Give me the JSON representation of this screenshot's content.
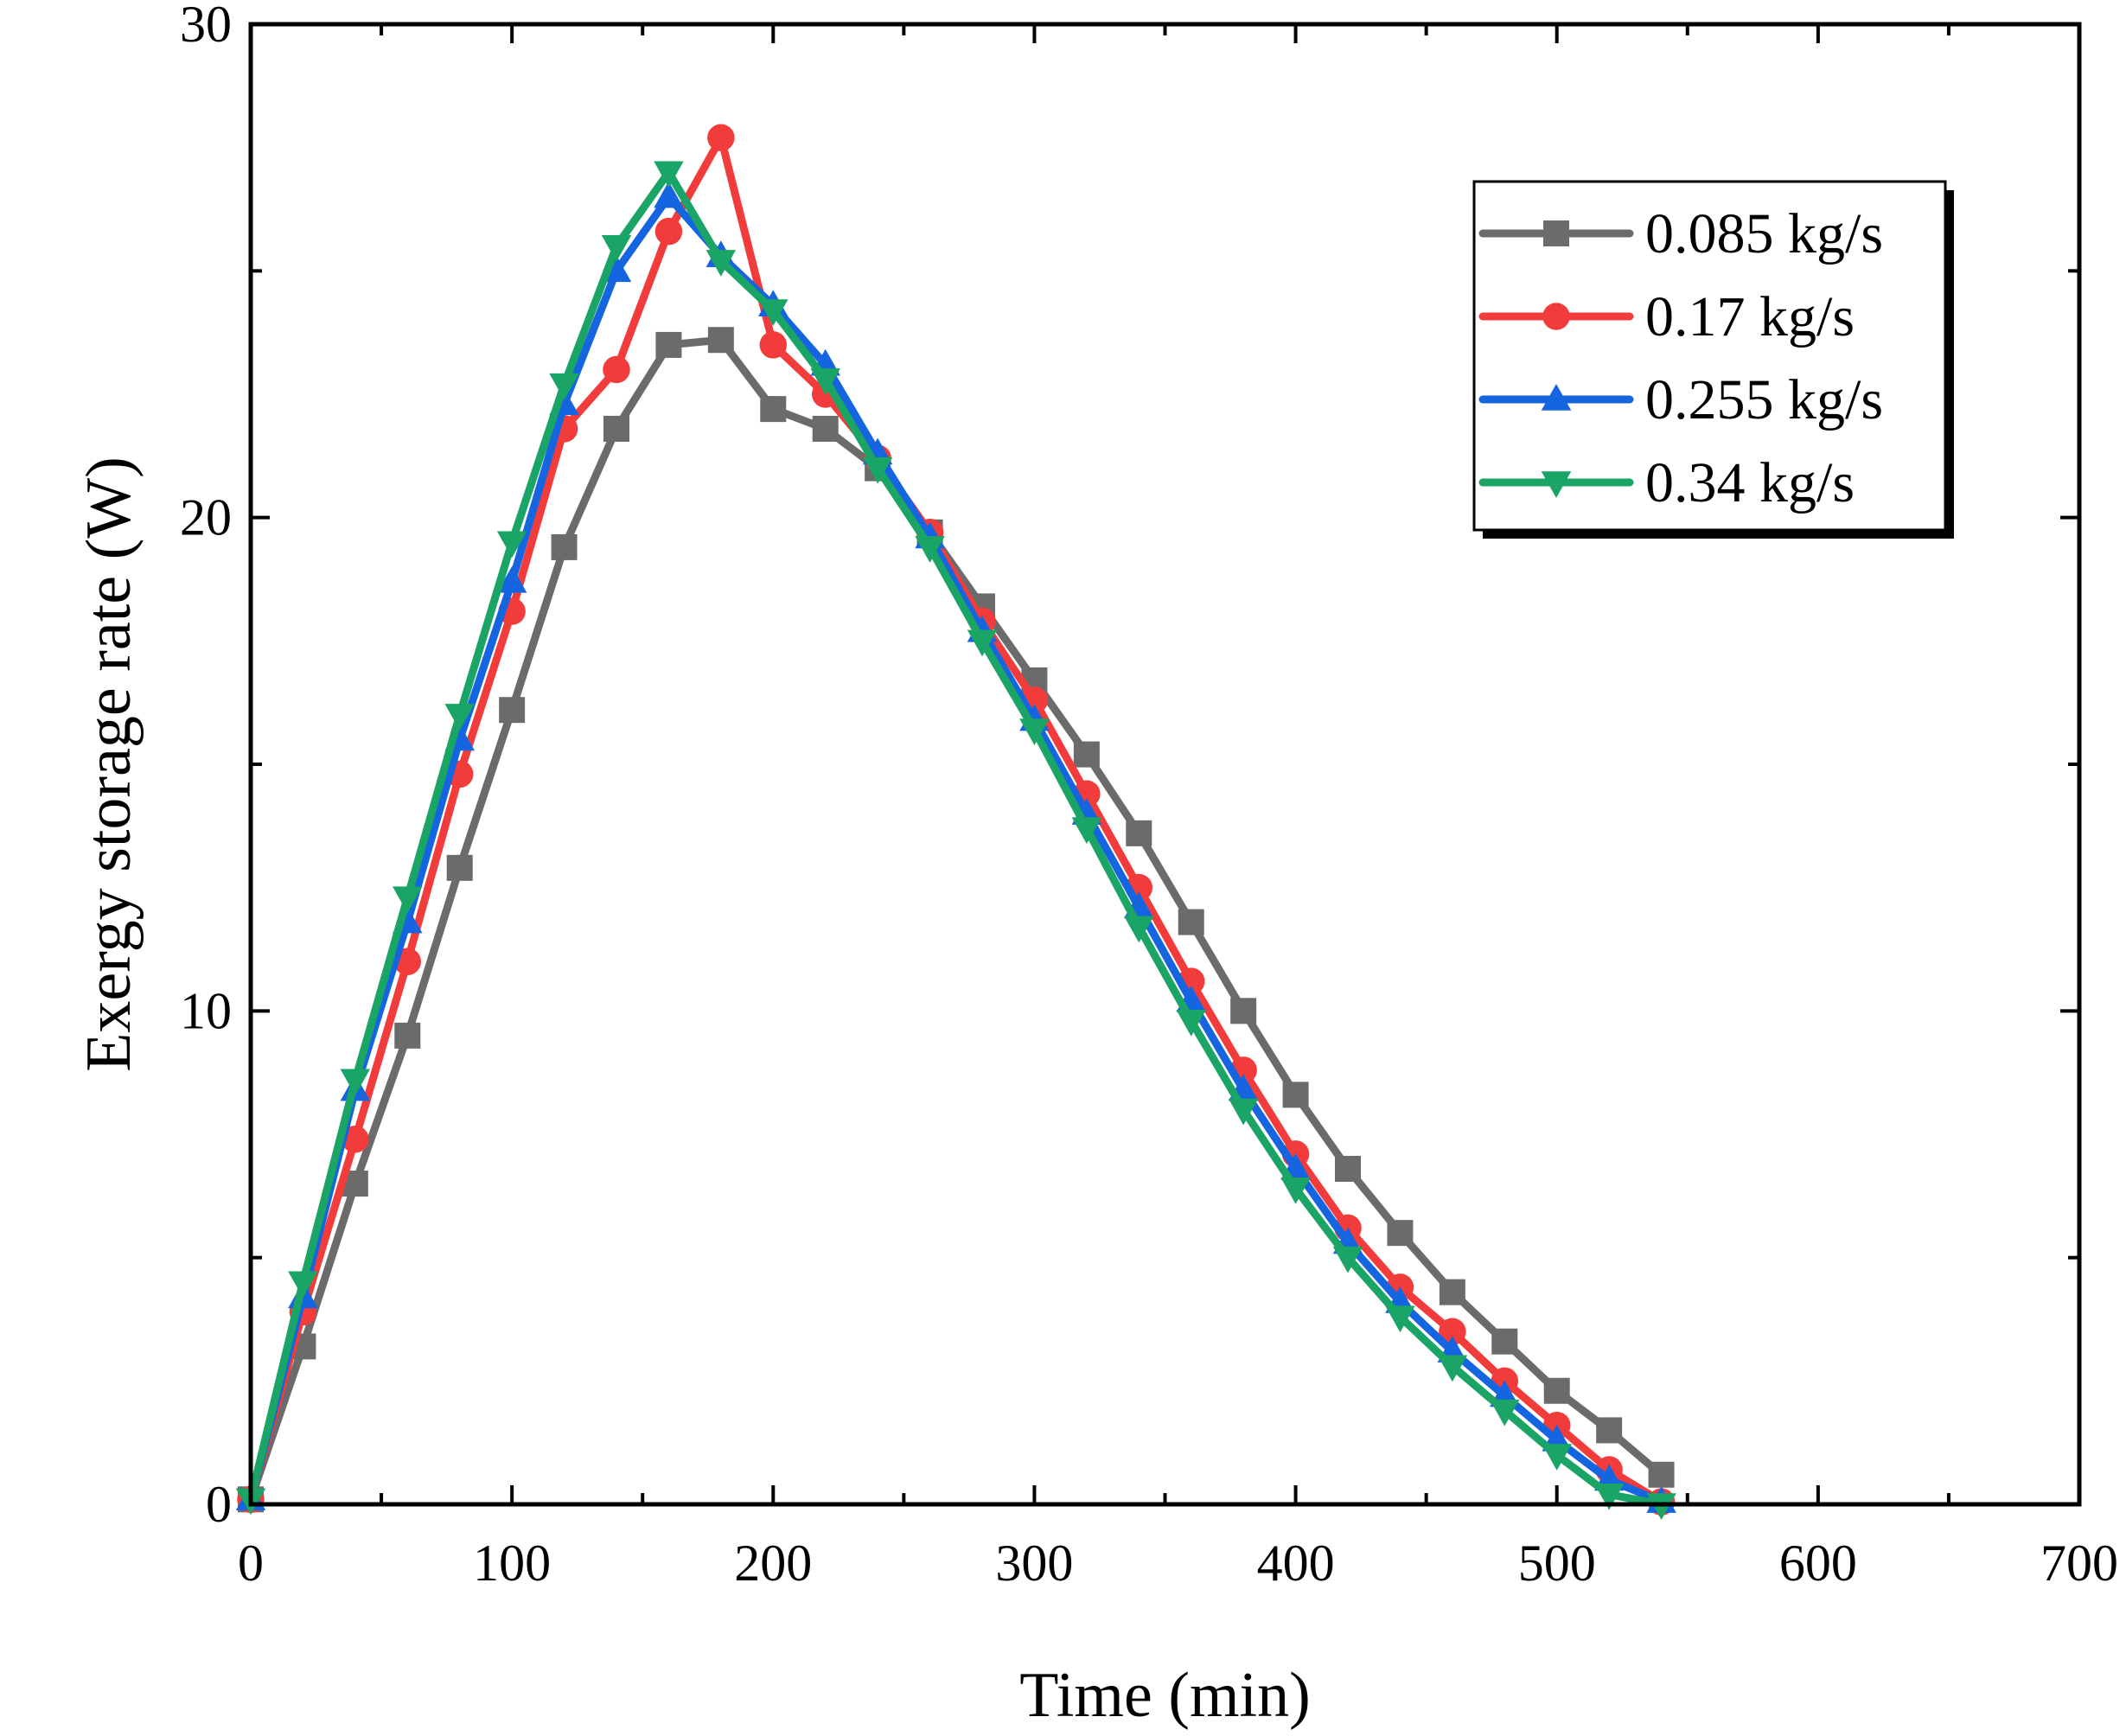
{
  "chart_data": {
    "type": "line",
    "title": "",
    "xlabel": "Time (min)",
    "ylabel": "Exergy storage rate (W)",
    "xlim": [
      0,
      700
    ],
    "ylim": [
      0,
      30
    ],
    "xticks": [
      0,
      100,
      200,
      300,
      400,
      500,
      600,
      700
    ],
    "yticks": [
      0,
      10,
      20,
      30
    ],
    "grid": false,
    "legend_position": "top-right",
    "x": [
      0,
      20,
      40,
      60,
      80,
      100,
      120,
      140,
      160,
      180,
      200,
      220,
      240,
      260,
      280,
      300,
      320,
      340,
      360,
      380,
      400,
      420,
      440,
      460,
      480,
      500,
      520,
      540
    ],
    "series": [
      {
        "name": "0.085 kg/s",
        "color": "#6b6b6b",
        "marker": "square",
        "values": [
          0.1,
          3.2,
          6.5,
          9.5,
          12.9,
          16.1,
          19.4,
          21.8,
          23.5,
          23.6,
          22.2,
          21.8,
          21.0,
          19.7,
          18.2,
          16.7,
          15.2,
          13.6,
          11.8,
          10.0,
          8.3,
          6.8,
          5.5,
          4.3,
          3.3,
          2.3,
          1.5,
          0.6
        ]
      },
      {
        "name": "0.17 kg/s",
        "color": "#f23c3c",
        "marker": "circle",
        "values": [
          0.1,
          3.9,
          7.4,
          11.0,
          14.8,
          18.1,
          21.8,
          23.0,
          25.8,
          27.7,
          23.5,
          22.5,
          21.2,
          19.7,
          17.9,
          16.3,
          14.4,
          12.5,
          10.6,
          8.8,
          7.1,
          5.6,
          4.4,
          3.5,
          2.5,
          1.6,
          0.7,
          0.05
        ]
      },
      {
        "name": "0.255 kg/s",
        "color": "#1565e0",
        "marker": "triangle-up",
        "values": [
          0.1,
          4.2,
          8.4,
          11.8,
          15.5,
          18.7,
          22.3,
          25.0,
          26.5,
          25.3,
          24.3,
          23.1,
          21.3,
          19.6,
          17.7,
          15.9,
          14.0,
          12.1,
          10.2,
          8.4,
          6.8,
          5.3,
          4.1,
          3.1,
          2.2,
          1.3,
          0.5,
          0.05
        ]
      },
      {
        "name": "0.34 kg/s",
        "color": "#1aa466",
        "marker": "triangle-down",
        "values": [
          0.1,
          4.5,
          8.6,
          12.3,
          16.0,
          19.5,
          22.7,
          25.5,
          27.0,
          25.2,
          24.2,
          22.8,
          21.0,
          19.4,
          17.5,
          15.7,
          13.7,
          11.7,
          9.8,
          8.0,
          6.4,
          5.0,
          3.8,
          2.8,
          1.9,
          1.0,
          0.2,
          0.0
        ]
      }
    ]
  }
}
